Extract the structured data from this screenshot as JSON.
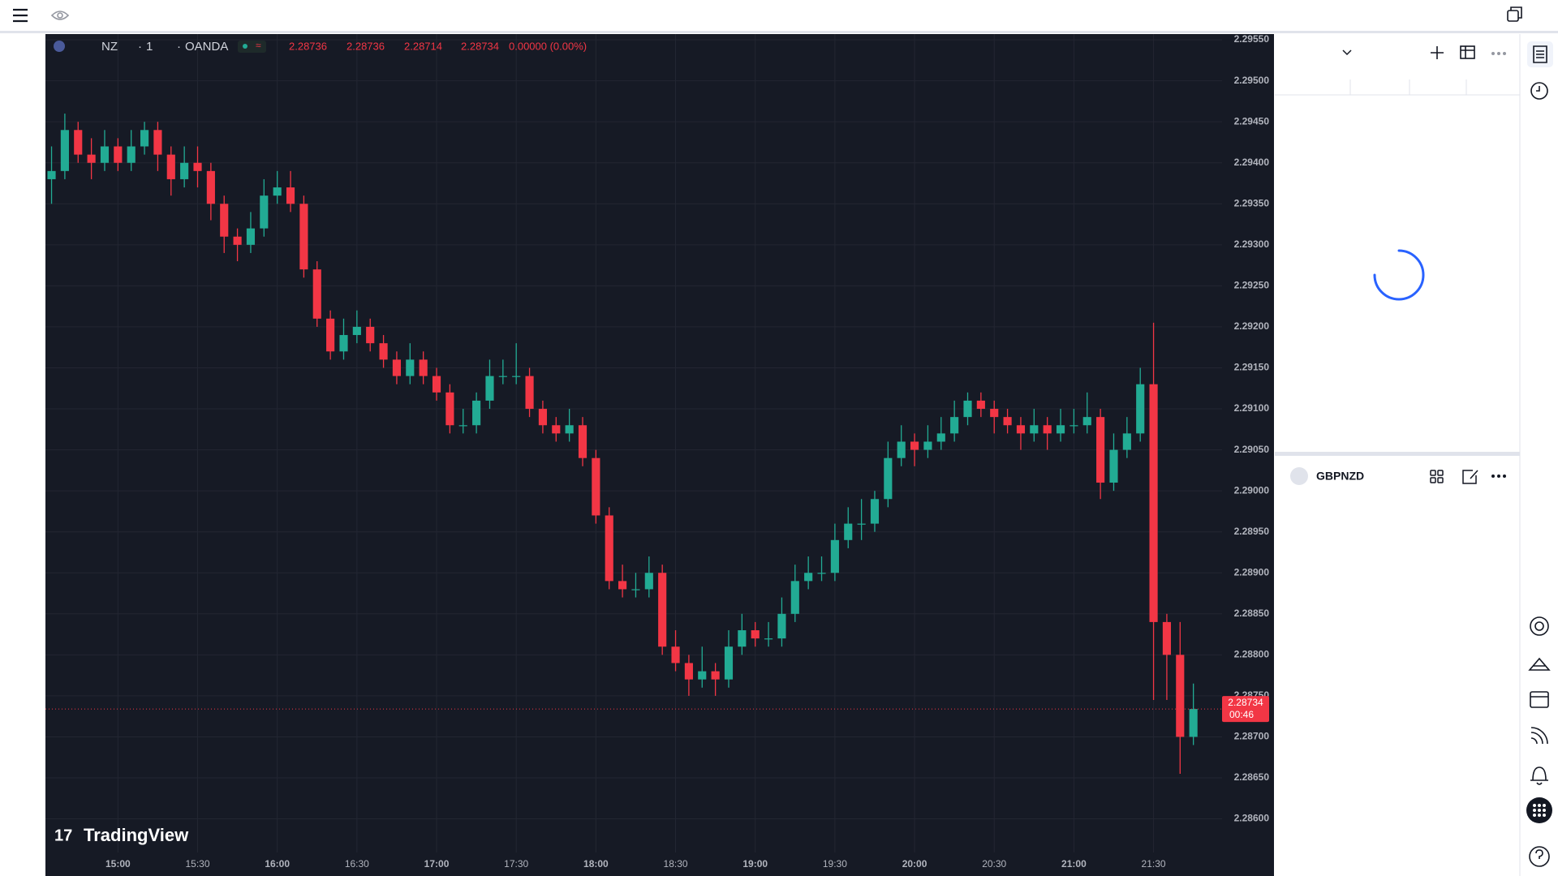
{
  "chart_data": {
    "type": "candlestick",
    "legend": {
      "symbol": "NZ",
      "interval": "1",
      "exchange": "OANDA",
      "open": "2.28736",
      "high": "2.28736",
      "low": "2.28714",
      "close": "2.28734",
      "change": "0.00000 (0.00%)"
    },
    "watermark": "TradingView",
    "last_price_label": "2.28734",
    "countdown": "00:46",
    "up_color": "#22ab94",
    "down_color": "#f23645",
    "grid": true,
    "xlim": [
      872.7,
      1315.8
    ],
    "xticks": [
      {
        "value": 900,
        "label": "15:00"
      },
      {
        "value": 930,
        "label": "15:30"
      },
      {
        "value": 960,
        "label": "16:00"
      },
      {
        "value": 990,
        "label": "16:30"
      },
      {
        "value": 1020,
        "label": "17:00"
      },
      {
        "value": 1050,
        "label": "17:30"
      },
      {
        "value": 1080,
        "label": "18:00"
      },
      {
        "value": 1110,
        "label": "18:30"
      },
      {
        "value": 1140,
        "label": "19:00"
      },
      {
        "value": 1170,
        "label": "19:30"
      },
      {
        "value": 1200,
        "label": "20:00"
      },
      {
        "value": 1230,
        "label": "20:30"
      },
      {
        "value": 1260,
        "label": "21:00"
      },
      {
        "value": 1290,
        "label": "21:30"
      }
    ],
    "ylim": [
      2.28559,
      2.29557
    ],
    "yticks": [
      {
        "value": 2.2955,
        "label": "2.29550"
      },
      {
        "value": 2.295,
        "label": "2.29500"
      },
      {
        "value": 2.2945,
        "label": "2.29450"
      },
      {
        "value": 2.294,
        "label": "2.29400"
      },
      {
        "value": 2.2935,
        "label": "2.29350"
      },
      {
        "value": 2.293,
        "label": "2.29300"
      },
      {
        "value": 2.2925,
        "label": "2.29250"
      },
      {
        "value": 2.292,
        "label": "2.29200"
      },
      {
        "value": 2.2915,
        "label": "2.29150"
      },
      {
        "value": 2.291,
        "label": "2.29100"
      },
      {
        "value": 2.2905,
        "label": "2.29050"
      },
      {
        "value": 2.29,
        "label": "2.29000"
      },
      {
        "value": 2.2895,
        "label": "2.28950"
      },
      {
        "value": 2.289,
        "label": "2.28900"
      },
      {
        "value": 2.2885,
        "label": "2.28850"
      },
      {
        "value": 2.288,
        "label": "2.28800"
      },
      {
        "value": 2.2875,
        "label": "2.28750"
      },
      {
        "value": 2.287,
        "label": "2.28700"
      },
      {
        "value": 2.2865,
        "label": "2.28650"
      },
      {
        "value": 2.286,
        "label": "2.28600"
      }
    ],
    "x": [
      875,
      880,
      885,
      890,
      895,
      900,
      905,
      910,
      915,
      920,
      925,
      930,
      935,
      940,
      945,
      950,
      955,
      960,
      965,
      970,
      975,
      980,
      985,
      990,
      995,
      1000,
      1005,
      1010,
      1015,
      1020,
      1025,
      1030,
      1035,
      1040,
      1045,
      1050,
      1055,
      1060,
      1065,
      1070,
      1075,
      1080,
      1085,
      1090,
      1095,
      1100,
      1105,
      1110,
      1115,
      1120,
      1125,
      1130,
      1135,
      1140,
      1145,
      1150,
      1155,
      1160,
      1165,
      1170,
      1175,
      1180,
      1185,
      1190,
      1195,
      1200,
      1205,
      1210,
      1215,
      1220,
      1225,
      1230,
      1235,
      1240,
      1245,
      1250,
      1255,
      1260,
      1265,
      1270,
      1275,
      1280,
      1285,
      1290,
      1295,
      1300,
      1305
    ],
    "open": [
      2.2938,
      2.2939,
      2.2944,
      2.2941,
      2.294,
      2.2942,
      2.294,
      2.2942,
      2.2944,
      2.2941,
      2.2938,
      2.294,
      2.2939,
      2.2935,
      2.2931,
      2.293,
      2.2932,
      2.2936,
      2.2937,
      2.2935,
      2.2927,
      2.2921,
      2.2917,
      2.2919,
      2.292,
      2.2918,
      2.2916,
      2.2914,
      2.2916,
      2.2914,
      2.2912,
      2.2908,
      2.2908,
      2.2911,
      2.2914,
      2.2914,
      2.2914,
      2.291,
      2.2908,
      2.2907,
      2.2908,
      2.2904,
      2.2897,
      2.2889,
      2.2888,
      2.2888,
      2.289,
      2.2881,
      2.2879,
      2.2877,
      2.2878,
      2.2877,
      2.2881,
      2.2883,
      2.2882,
      2.2882,
      2.2885,
      2.2889,
      2.289,
      2.289,
      2.2894,
      2.2896,
      2.2896,
      2.2899,
      2.2904,
      2.2906,
      2.2905,
      2.2906,
      2.2907,
      2.2909,
      2.2911,
      2.291,
      2.2909,
      2.2908,
      2.2907,
      2.2908,
      2.2907,
      2.2908,
      2.2908,
      2.2909,
      2.2901,
      2.2905,
      2.2907,
      2.2913,
      2.2884,
      2.288,
      2.287
    ],
    "high": [
      2.2942,
      2.2946,
      2.2945,
      2.2943,
      2.2944,
      2.2943,
      2.2944,
      2.2945,
      2.2945,
      2.2942,
      2.2942,
      2.2942,
      2.294,
      2.2936,
      2.2932,
      2.2934,
      2.2938,
      2.2939,
      2.2939,
      2.2936,
      2.2928,
      2.2922,
      2.2921,
      2.2922,
      2.2921,
      2.2919,
      2.2917,
      2.2918,
      2.2917,
      2.2915,
      2.2913,
      2.291,
      2.2912,
      2.2916,
      2.2916,
      2.2918,
      2.2915,
      2.2911,
      2.2909,
      2.291,
      2.2909,
      2.2905,
      2.2898,
      2.2891,
      2.289,
      2.2892,
      2.2891,
      2.2883,
      2.288,
      2.2881,
      2.2879,
      2.2883,
      2.2885,
      2.2884,
      2.2884,
      2.2887,
      2.2891,
      2.2892,
      2.2892,
      2.2896,
      2.2898,
      2.2899,
      2.29,
      2.2906,
      2.2908,
      2.2907,
      2.2908,
      2.2909,
      2.2911,
      2.2912,
      2.2912,
      2.2911,
      2.291,
      2.2909,
      2.291,
      2.2909,
      2.291,
      2.291,
      2.2912,
      2.291,
      2.2907,
      2.2909,
      2.2915,
      2.29205,
      2.2885,
      2.2884,
      2.28765
    ],
    "low": [
      2.2935,
      2.2938,
      2.294,
      2.2938,
      2.2939,
      2.2939,
      2.2939,
      2.2941,
      2.2939,
      2.2936,
      2.2937,
      2.2937,
      2.2933,
      2.2929,
      2.2928,
      2.2929,
      2.2931,
      2.2935,
      2.2934,
      2.2926,
      2.292,
      2.2916,
      2.2916,
      2.2918,
      2.2917,
      2.2915,
      2.2913,
      2.2913,
      2.2913,
      2.2911,
      2.2907,
      2.2907,
      2.2907,
      2.291,
      2.2913,
      2.2913,
      2.2909,
      2.2907,
      2.2906,
      2.2906,
      2.2903,
      2.2896,
      2.2888,
      2.2887,
      2.2887,
      2.2887,
      2.288,
      2.2878,
      2.2875,
      2.2876,
      2.2875,
      2.2876,
      2.288,
      2.2881,
      2.2881,
      2.2881,
      2.2884,
      2.2888,
      2.2889,
      2.2889,
      2.2893,
      2.2894,
      2.2895,
      2.2898,
      2.2903,
      2.2903,
      2.2904,
      2.2905,
      2.2906,
      2.2908,
      2.2909,
      2.2907,
      2.2907,
      2.2905,
      2.2906,
      2.2905,
      2.2906,
      2.2907,
      2.2907,
      2.2899,
      2.29,
      2.2904,
      2.2906,
      2.28745,
      2.28745,
      2.28655,
      2.2869
    ],
    "close": [
      2.2939,
      2.2944,
      2.2941,
      2.294,
      2.2942,
      2.294,
      2.2942,
      2.2944,
      2.2941,
      2.2938,
      2.294,
      2.2939,
      2.2935,
      2.2931,
      2.293,
      2.2932,
      2.2936,
      2.2937,
      2.2935,
      2.2927,
      2.2921,
      2.2917,
      2.2919,
      2.292,
      2.2918,
      2.2916,
      2.2914,
      2.2916,
      2.2914,
      2.2912,
      2.2908,
      2.2908,
      2.2911,
      2.2914,
      2.2914,
      2.2914,
      2.291,
      2.2908,
      2.2907,
      2.2908,
      2.2904,
      2.2897,
      2.2889,
      2.2888,
      2.2888,
      2.289,
      2.2881,
      2.2879,
      2.2877,
      2.2878,
      2.2877,
      2.2881,
      2.2883,
      2.2882,
      2.2882,
      2.2885,
      2.2889,
      2.289,
      2.289,
      2.2894,
      2.2896,
      2.2896,
      2.2899,
      2.2904,
      2.2906,
      2.2905,
      2.2906,
      2.2907,
      2.2909,
      2.2911,
      2.291,
      2.2909,
      2.2908,
      2.2907,
      2.2908,
      2.2907,
      2.2908,
      2.2908,
      2.2909,
      2.2901,
      2.2905,
      2.2907,
      2.2913,
      2.2884,
      2.288,
      2.287,
      2.28734
    ]
  },
  "panel": {
    "symbol": "GBPNZD"
  }
}
